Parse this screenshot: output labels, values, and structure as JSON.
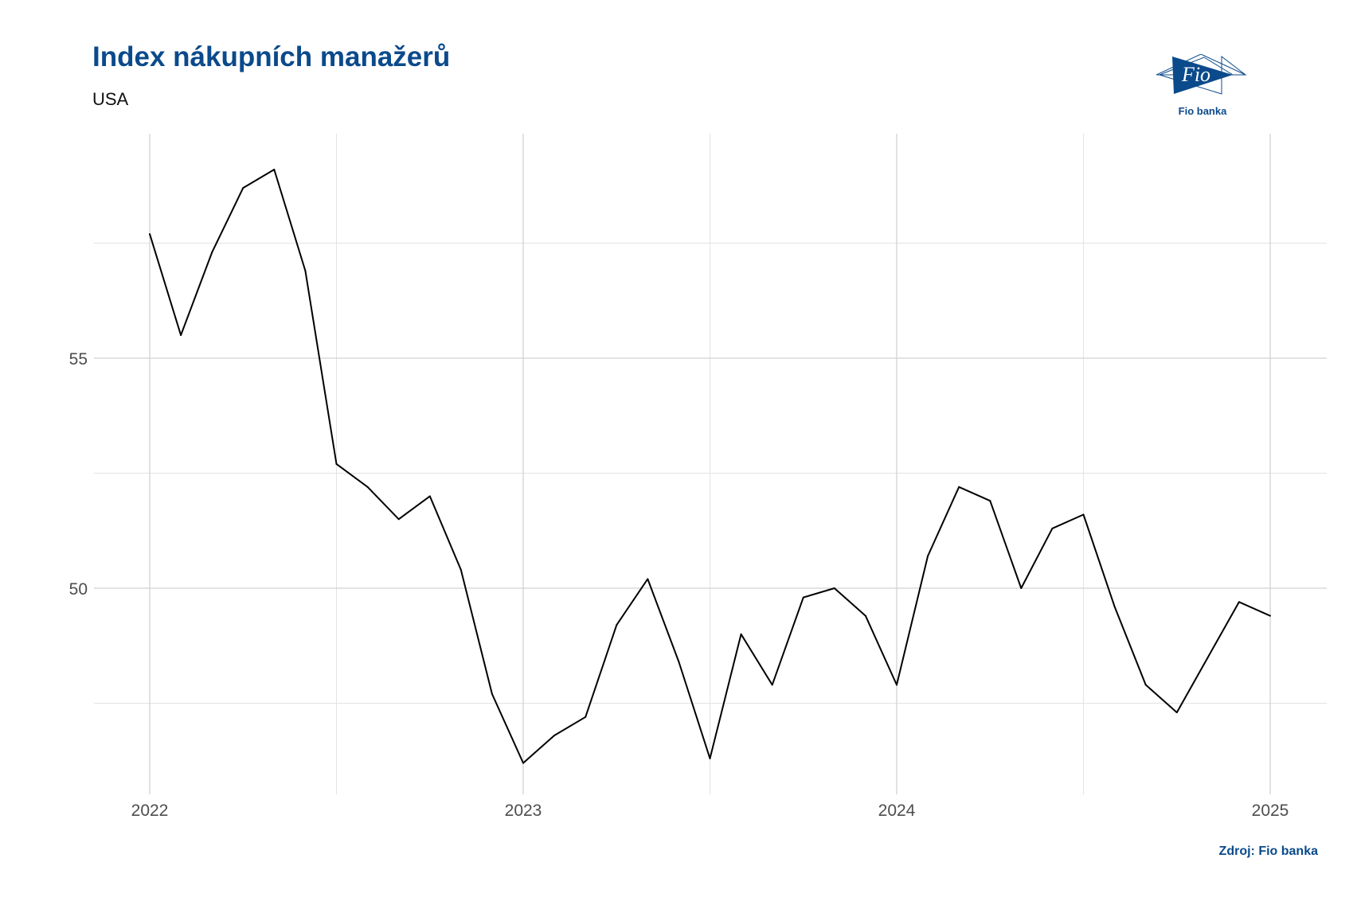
{
  "header": {
    "title": "Index nákupních manažerů",
    "subtitle": "USA"
  },
  "logo": {
    "mark_text": "Fio",
    "caption": "Fio banka",
    "color": "#0b4a8b"
  },
  "footer": {
    "source": "Zdroj: Fio banka"
  },
  "chart_data": {
    "type": "line",
    "title": "Index nákupních manažerů",
    "subtitle": "USA",
    "xlabel": "",
    "ylabel": "",
    "x_ticks": [
      {
        "value": 2022,
        "label": "2022"
      },
      {
        "value": 2023,
        "label": "2023"
      },
      {
        "value": 2024,
        "label": "2024"
      },
      {
        "value": 2025,
        "label": "2025"
      }
    ],
    "y_ticks": [
      {
        "value": 50,
        "label": "50"
      },
      {
        "value": 55,
        "label": "55"
      }
    ],
    "grid": true,
    "line_color": "#000000",
    "series": [
      {
        "x": [
          "2022-01",
          "2022-02",
          "2022-03",
          "2022-04",
          "2022-05",
          "2022-06",
          "2022-07",
          "2022-08",
          "2022-09",
          "2022-10",
          "2022-11",
          "2022-12",
          "2023-01",
          "2023-02",
          "2023-03",
          "2023-04",
          "2023-05",
          "2023-06",
          "2023-07",
          "2023-08",
          "2023-09",
          "2023-10",
          "2023-11",
          "2023-12",
          "2024-01",
          "2024-02",
          "2024-03",
          "2024-04",
          "2024-05",
          "2024-06",
          "2024-07",
          "2024-08",
          "2024-09",
          "2024-10",
          "2024-11",
          "2024-12",
          "2025-01"
        ],
        "values": [
          57.7,
          55.5,
          57.3,
          58.7,
          59.1,
          56.9,
          52.7,
          52.2,
          51.5,
          52.0,
          50.4,
          47.7,
          46.2,
          46.8,
          47.2,
          49.2,
          50.2,
          48.4,
          46.3,
          49.0,
          47.9,
          49.8,
          50.0,
          49.4,
          47.9,
          50.7,
          52.2,
          51.9,
          50.0,
          51.3,
          51.6,
          49.6,
          47.9,
          47.3,
          48.5,
          49.7,
          49.4
        ]
      }
    ]
  }
}
